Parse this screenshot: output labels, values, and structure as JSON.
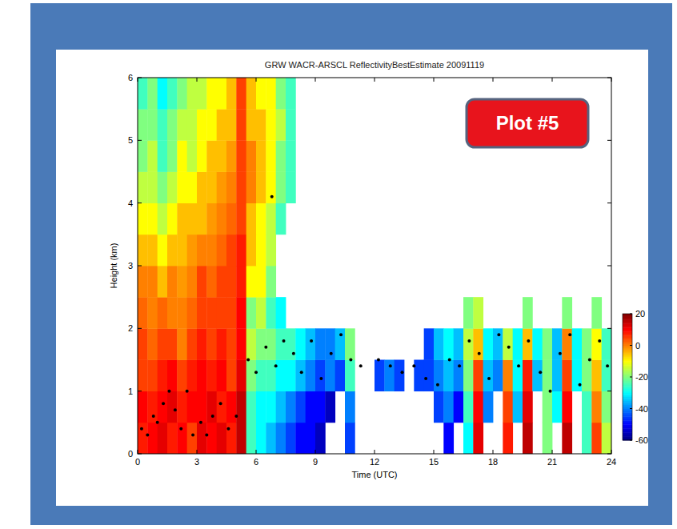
{
  "chart_data": {
    "type": "heatmap",
    "title": "GRW WACR-ARSCL ReflectivityBestEstimate 20091119",
    "x_label": "Time (UTC)",
    "y_label": "Height (km)",
    "annotation": "Plot #5",
    "xlim": [
      0,
      24
    ],
    "xticks": [
      0,
      3,
      6,
      9,
      12,
      15,
      18,
      21,
      24
    ],
    "ylim": [
      0,
      6
    ],
    "yticks": [
      0,
      1,
      2,
      3,
      4,
      5,
      6
    ],
    "x_bins": [
      0,
      0.5,
      1,
      1.5,
      2,
      2.5,
      3,
      3.5,
      4,
      4.5,
      5,
      5.5,
      6,
      6.5,
      7,
      7.5,
      8,
      8.5,
      9,
      9.5,
      10,
      10.5,
      11,
      11.5,
      12,
      12.5,
      13,
      13.5,
      14,
      14.5,
      15,
      15.5,
      16,
      16.5,
      17,
      17.5,
      18,
      18.5,
      19,
      19.5,
      20,
      20.5,
      21,
      21.5,
      22,
      22.5,
      23,
      23.5,
      24
    ],
    "y_bins": [
      0,
      0.5,
      1,
      1.5,
      2,
      2.5,
      3,
      3.5,
      4,
      4.5,
      5,
      5.5,
      6
    ],
    "cells": [
      [
        8,
        10,
        12,
        8,
        10,
        5,
        12,
        10,
        12,
        8,
        15,
        -25,
        -30,
        -35,
        -40,
        -45,
        -50,
        -50,
        -55,
        null,
        null,
        -45,
        null,
        null,
        null,
        null,
        null,
        null,
        null,
        null,
        null,
        -50,
        null,
        -30,
        12,
        null,
        null,
        8,
        null,
        15,
        null,
        -20,
        null,
        15,
        null,
        -25,
        5,
        -15
      ],
      [
        10,
        8,
        10,
        12,
        8,
        10,
        10,
        12,
        8,
        10,
        15,
        -25,
        -30,
        -30,
        -35,
        -40,
        -45,
        -50,
        -50,
        -55,
        null,
        -40,
        null,
        null,
        null,
        null,
        null,
        null,
        null,
        null,
        -45,
        -40,
        -50,
        -25,
        10,
        -40,
        null,
        5,
        -35,
        12,
        null,
        -20,
        -30,
        10,
        null,
        -25,
        0,
        -20
      ],
      [
        5,
        5,
        8,
        10,
        5,
        8,
        10,
        8,
        10,
        5,
        12,
        -20,
        -25,
        -25,
        -30,
        -30,
        -35,
        -40,
        -45,
        -40,
        -45,
        -25,
        null,
        null,
        -45,
        -40,
        -45,
        null,
        -45,
        -45,
        -40,
        -35,
        -40,
        -20,
        5,
        -35,
        -40,
        0,
        -30,
        8,
        -35,
        -20,
        -35,
        5,
        -30,
        -20,
        -5,
        -25
      ],
      [
        5,
        2,
        5,
        5,
        0,
        5,
        8,
        5,
        8,
        5,
        10,
        -15,
        -20,
        -20,
        -25,
        -25,
        -30,
        -35,
        -40,
        -40,
        -35,
        -20,
        null,
        null,
        null,
        null,
        null,
        null,
        null,
        -45,
        -35,
        -30,
        -35,
        -15,
        -5,
        -30,
        -35,
        -15,
        -30,
        -5,
        -30,
        -20,
        -35,
        0,
        -30,
        -20,
        -10,
        -25
      ],
      [
        2,
        0,
        2,
        0,
        0,
        2,
        5,
        5,
        5,
        5,
        10,
        -20,
        -15,
        -25,
        -30,
        null,
        null,
        null,
        null,
        null,
        null,
        null,
        null,
        null,
        null,
        null,
        null,
        null,
        null,
        null,
        null,
        null,
        null,
        -20,
        -15,
        null,
        null,
        null,
        null,
        -20,
        null,
        null,
        null,
        -20,
        null,
        null,
        -20,
        null
      ],
      [
        0,
        0,
        -5,
        0,
        -2,
        0,
        5,
        2,
        5,
        5,
        8,
        -10,
        -10,
        -20,
        null,
        null,
        null,
        null,
        null,
        null,
        null,
        null,
        null,
        null,
        null,
        null,
        null,
        null,
        null,
        null,
        null,
        null,
        null,
        null,
        null,
        null,
        null,
        null,
        null,
        null,
        null,
        null,
        null,
        null,
        null,
        null,
        null,
        null
      ],
      [
        -5,
        -5,
        -10,
        -5,
        -5,
        -2,
        0,
        0,
        2,
        5,
        8,
        -5,
        -10,
        -15,
        null,
        null,
        null,
        null,
        null,
        null,
        null,
        null,
        null,
        null,
        null,
        null,
        null,
        null,
        null,
        null,
        null,
        null,
        null,
        null,
        null,
        null,
        null,
        null,
        null,
        null,
        null,
        null,
        null,
        null,
        null,
        null,
        null,
        null
      ],
      [
        -10,
        -10,
        -15,
        -10,
        -5,
        -5,
        -5,
        -2,
        0,
        2,
        5,
        -5,
        -10,
        -15,
        -25,
        null,
        null,
        null,
        null,
        null,
        null,
        null,
        null,
        null,
        null,
        null,
        null,
        null,
        null,
        null,
        null,
        null,
        null,
        null,
        null,
        null,
        null,
        null,
        null,
        null,
        null,
        null,
        null,
        null,
        null,
        null,
        null,
        null
      ],
      [
        -15,
        -15,
        -20,
        -15,
        -10,
        -10,
        -5,
        -5,
        -2,
        0,
        5,
        0,
        -5,
        -10,
        -20,
        -25,
        null,
        null,
        null,
        null,
        null,
        null,
        null,
        null,
        null,
        null,
        null,
        null,
        null,
        null,
        null,
        null,
        null,
        null,
        null,
        null,
        null,
        null,
        null,
        null,
        null,
        null,
        null,
        null,
        null,
        null,
        null,
        null
      ],
      [
        -20,
        -15,
        -25,
        -20,
        -10,
        -15,
        -10,
        -5,
        -5,
        -2,
        5,
        0,
        -5,
        -10,
        -20,
        -25,
        null,
        null,
        null,
        null,
        null,
        null,
        null,
        null,
        null,
        null,
        null,
        null,
        null,
        null,
        null,
        null,
        null,
        null,
        null,
        null,
        null,
        null,
        null,
        null,
        null,
        null,
        null,
        null,
        null,
        null,
        null,
        null
      ],
      [
        -20,
        -20,
        -25,
        -20,
        -15,
        -15,
        -10,
        -10,
        -5,
        -5,
        5,
        -5,
        -5,
        -10,
        -15,
        -25,
        null,
        null,
        null,
        null,
        null,
        null,
        null,
        null,
        null,
        null,
        null,
        null,
        null,
        null,
        null,
        null,
        null,
        null,
        null,
        null,
        null,
        null,
        null,
        null,
        null,
        null,
        null,
        null,
        null,
        null,
        null,
        null
      ],
      [
        -25,
        -20,
        -30,
        -25,
        -20,
        -15,
        -15,
        -10,
        -10,
        -5,
        5,
        -5,
        -10,
        -10,
        -20,
        -25,
        null,
        null,
        null,
        null,
        null,
        null,
        null,
        null,
        null,
        null,
        null,
        null,
        null,
        null,
        null,
        null,
        null,
        null,
        null,
        null,
        null,
        null,
        null,
        null,
        null,
        null,
        null,
        null,
        null,
        null,
        null,
        null
      ]
    ],
    "colorbar": {
      "range": [
        -60,
        20
      ],
      "ticks": [
        20,
        0,
        -20,
        -40,
        -60
      ]
    },
    "scatter": {
      "color": "#000000",
      "x": [
        0.2,
        0.5,
        0.8,
        1.0,
        1.3,
        1.6,
        1.9,
        2.2,
        2.5,
        2.8,
        3.2,
        3.5,
        3.8,
        4.2,
        4.6,
        5.0,
        5.6,
        6.0,
        6.5,
        7.0,
        7.4,
        7.9,
        8.3,
        8.8,
        9.3,
        9.8,
        10.3,
        10.8,
        11.3,
        12.2,
        12.8,
        13.4,
        14.0,
        14.6,
        15.2,
        15.8,
        16.3,
        16.8,
        17.3,
        17.8,
        18.3,
        18.8,
        19.3,
        19.8,
        20.4,
        20.9,
        21.4,
        21.9,
        22.4,
        22.9,
        23.4,
        23.8,
        6.8
      ],
      "y": [
        0.4,
        0.3,
        0.6,
        0.5,
        0.8,
        1.0,
        0.7,
        0.4,
        1.0,
        0.3,
        0.5,
        0.3,
        0.6,
        0.8,
        0.4,
        0.6,
        1.5,
        1.3,
        1.7,
        1.4,
        1.8,
        1.6,
        1.3,
        1.8,
        1.2,
        1.6,
        1.9,
        1.5,
        1.4,
        1.5,
        1.4,
        1.3,
        1.4,
        1.2,
        1.1,
        1.5,
        1.4,
        1.8,
        1.6,
        1.2,
        1.9,
        1.7,
        1.4,
        1.8,
        1.3,
        1.0,
        1.6,
        1.9,
        1.1,
        1.5,
        1.8,
        1.4,
        4.1
      ]
    }
  }
}
